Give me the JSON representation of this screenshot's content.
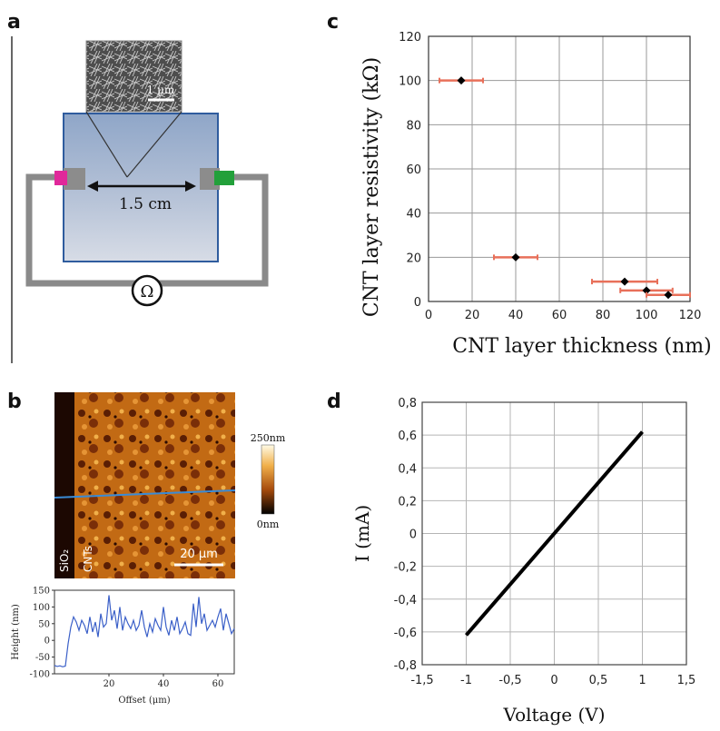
{
  "panels": {
    "a": {
      "letter": "a",
      "scale_bar": "1 μm",
      "distance": "1.5 cm",
      "ohm_symbol": "Ω"
    },
    "b": {
      "letter": "b",
      "colorbar_max": "250nm",
      "colorbar_min": "0nm",
      "label_sio2": "SiO₂",
      "label_cnts": "CNTs",
      "scale_bar": "20 μm"
    },
    "c": {
      "letter": "c"
    },
    "d": {
      "letter": "d"
    }
  },
  "chart_data": [
    {
      "id": "c",
      "type": "scatter",
      "xlabel": "CNT layer thickness (nm)",
      "ylabel": "CNT layer resistivity (kΩ)",
      "xlim": [
        0,
        120
      ],
      "ylim": [
        0,
        120
      ],
      "xticks": [
        "0",
        "20",
        "40",
        "60",
        "80",
        "100",
        "120"
      ],
      "yticks": [
        "0",
        "20",
        "40",
        "60",
        "80",
        "100",
        "120"
      ],
      "grid": true,
      "points": [
        {
          "x": 15,
          "y": 100,
          "xerr": 10
        },
        {
          "x": 40,
          "y": 20,
          "xerr": 10
        },
        {
          "x": 90,
          "y": 9,
          "xerr": 15
        },
        {
          "x": 100,
          "y": 5,
          "xerr": 12
        },
        {
          "x": 110,
          "y": 3,
          "xerr": 10
        }
      ]
    },
    {
      "id": "d",
      "type": "line",
      "xlabel": "Voltage (V)",
      "ylabel": "I (mA)",
      "xlim": [
        -1.5,
        1.5
      ],
      "ylim": [
        -0.8,
        0.8
      ],
      "xticks": [
        "-1,5",
        "-1",
        "-0,5",
        "0",
        "0,5",
        "1",
        "1,5"
      ],
      "yticks": [
        "-0,8",
        "-0,6",
        "-0,4",
        "-0,2",
        "0",
        "0,2",
        "0,4",
        "0,6",
        "0,8"
      ],
      "grid": true,
      "x": [
        -1,
        1
      ],
      "y": [
        -0.62,
        0.62
      ]
    },
    {
      "id": "b-profile",
      "type": "line",
      "xlabel": "Offset (μm)",
      "ylabel": "Height (nm)",
      "xlim": [
        0,
        66
      ],
      "ylim": [
        -100,
        150
      ],
      "xticks": [
        "20",
        "40",
        "60"
      ],
      "yticks": [
        "-100",
        "-50",
        "0",
        "50",
        "100",
        "150"
      ],
      "x": [
        0,
        1,
        2,
        3,
        4,
        5,
        6,
        7,
        8,
        9,
        10,
        11,
        12,
        13,
        14,
        15,
        16,
        17,
        18,
        19,
        20,
        21,
        22,
        23,
        24,
        25,
        26,
        27,
        28,
        29,
        30,
        31,
        32,
        33,
        34,
        35,
        36,
        37,
        38,
        39,
        40,
        41,
        42,
        43,
        44,
        45,
        46,
        47,
        48,
        49,
        50,
        51,
        52,
        53,
        54,
        55,
        56,
        57,
        58,
        59,
        60,
        61,
        62,
        63,
        64,
        65,
        66
      ],
      "y": [
        -75,
        -78,
        -76,
        -79,
        -77,
        -10,
        40,
        70,
        55,
        30,
        60,
        45,
        20,
        70,
        25,
        55,
        10,
        80,
        40,
        50,
        135,
        60,
        90,
        35,
        100,
        30,
        70,
        50,
        35,
        60,
        30,
        45,
        90,
        40,
        10,
        50,
        25,
        65,
        45,
        30,
        100,
        40,
        15,
        60,
        30,
        70,
        20,
        35,
        55,
        20,
        15,
        110,
        40,
        130,
        50,
        80,
        30,
        45,
        60,
        40,
        70,
        95,
        30,
        80,
        50,
        20,
        35
      ]
    }
  ]
}
